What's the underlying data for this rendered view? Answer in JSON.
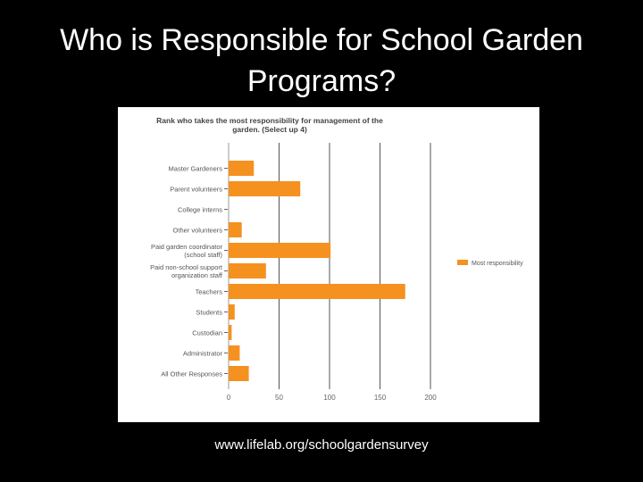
{
  "slide": {
    "title_line1": "Who is Responsible for School Garden",
    "title_line2": "Programs?",
    "footer_url": "www.lifelab.org/schoolgardensurvey"
  },
  "chart_data": {
    "type": "bar",
    "orientation": "horizontal",
    "title_lines": [
      "Rank who takes the most responsibility for management of the",
      "garden. (Select up 4)"
    ],
    "categories": [
      [
        "Master Gardeners"
      ],
      [
        "Parent volunteers"
      ],
      [
        "College interns"
      ],
      [
        "Other volunteers"
      ],
      [
        "Paid garden coordinator",
        "(school staff)"
      ],
      [
        "Paid non-school support",
        "organization staff"
      ],
      [
        "Teachers"
      ],
      [
        "Students"
      ],
      [
        "Custodian"
      ],
      [
        "Administrator"
      ],
      [
        "All Other Responses"
      ]
    ],
    "series": [
      {
        "name": "Most responsibility",
        "color": "#f5911f",
        "values": [
          25,
          71,
          0,
          13,
          101,
          37,
          175,
          6,
          3,
          11,
          20
        ]
      }
    ],
    "xlim": [
      0,
      200
    ],
    "xticks": [
      0,
      50,
      100,
      150,
      200
    ],
    "grid": true,
    "legend_position": "right"
  }
}
